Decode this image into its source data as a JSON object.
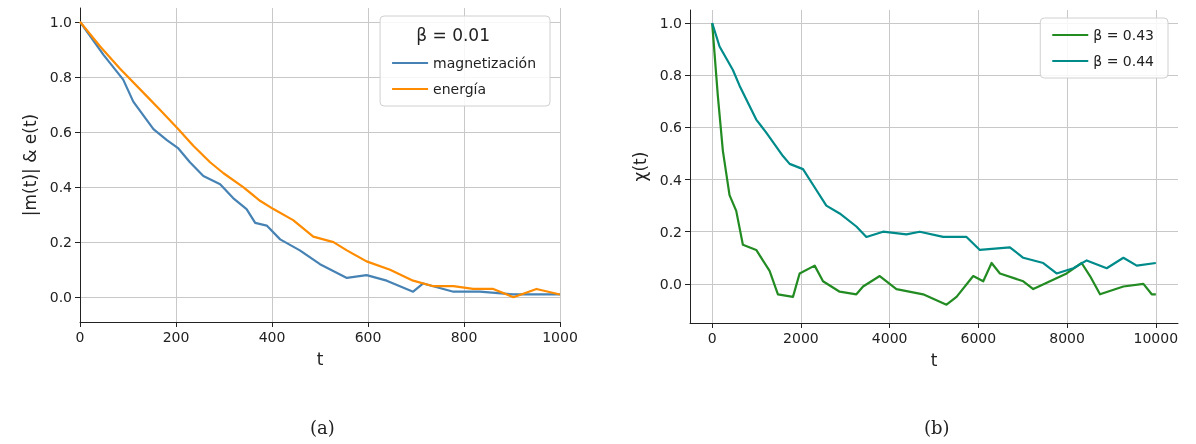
{
  "chart_data": [
    {
      "type": "line",
      "xlabel": "t",
      "ylabel": "|m(t)| & e(t)",
      "legend_title": "β = 0.01",
      "legend": "top right",
      "grid": true,
      "annotations": [
        "(a)"
      ],
      "xlim": [
        0,
        1000
      ],
      "xticks": [
        0,
        200,
        400,
        600,
        800,
        1000
      ],
      "ylim": [
        -0.09,
        1.05
      ],
      "yticks": [
        {
          "value": 0,
          "label": "0.0"
        },
        {
          "value": 0.2,
          "label": "0.2"
        },
        {
          "value": 0.4,
          "label": "0.4"
        },
        {
          "value": 0.6,
          "label": "0.6"
        },
        {
          "value": 0.8,
          "label": "0.8"
        },
        {
          "value": 1,
          "label": "1.0"
        }
      ],
      "series": [
        {
          "name": "magnetización",
          "color": "#4682b4",
          "x": [
            0,
            49,
            90,
            111,
            153,
            181,
            205,
            229,
            257,
            292,
            319,
            347,
            365,
            389,
            417,
            458,
            500,
            556,
            597,
            639,
            694,
            715,
            778,
            833,
            903,
            1000
          ],
          "values": [
            1.0,
            0.88,
            0.79,
            0.71,
            0.61,
            0.57,
            0.54,
            0.49,
            0.44,
            0.41,
            0.36,
            0.32,
            0.27,
            0.26,
            0.21,
            0.17,
            0.12,
            0.07,
            0.08,
            0.06,
            0.02,
            0.05,
            0.02,
            0.02,
            0.01,
            0.01
          ]
        },
        {
          "name": "energía",
          "color": "#ff8c00",
          "x": [
            0,
            42,
            83,
            139,
            167,
            205,
            236,
            271,
            299,
            340,
            375,
            403,
            444,
            486,
            528,
            556,
            597,
            646,
            694,
            736,
            778,
            819,
            861,
            903,
            951,
            1000
          ],
          "values": [
            1.0,
            0.91,
            0.83,
            0.73,
            0.68,
            0.61,
            0.55,
            0.49,
            0.45,
            0.4,
            0.35,
            0.32,
            0.28,
            0.22,
            0.2,
            0.17,
            0.13,
            0.1,
            0.06,
            0.04,
            0.04,
            0.03,
            0.03,
            0.0,
            0.03,
            0.01
          ]
        }
      ]
    },
    {
      "type": "line",
      "xlabel": "t",
      "ylabel": "χ(t)",
      "legend": "top right",
      "grid": true,
      "annotations": [
        "(b)"
      ],
      "xlim": [
        -500,
        10500
      ],
      "xticks": [
        0,
        2000,
        4000,
        6000,
        8000,
        10000
      ],
      "ylim": [
        -0.15,
        1.05
      ],
      "yticks": [
        {
          "value": 0,
          "label": "0.0"
        },
        {
          "value": 0.2,
          "label": "0.2"
        },
        {
          "value": 0.4,
          "label": "0.4"
        },
        {
          "value": 0.6,
          "label": "0.6"
        },
        {
          "value": 0.8,
          "label": "0.8"
        },
        {
          "value": 1,
          "label": "1.0"
        }
      ],
      "series": [
        {
          "name": "β = 0.43",
          "color": "#228b22",
          "x": [
            0,
            128,
            241,
            391,
            542,
            692,
            993,
            1294,
            1482,
            1821,
            1971,
            2310,
            2498,
            2874,
            3250,
            3401,
            3777,
            4153,
            4755,
            5282,
            5508,
            5884,
            6110,
            6298,
            6486,
            7012,
            7238,
            7614,
            7990,
            8328,
            8517,
            8742,
            9269,
            9720,
            9908,
            10000
          ],
          "values": [
            1.0,
            0.72,
            0.51,
            0.34,
            0.28,
            0.15,
            0.13,
            0.05,
            -0.04,
            -0.05,
            0.04,
            0.07,
            0.01,
            -0.03,
            -0.04,
            -0.01,
            0.03,
            -0.02,
            -0.04,
            -0.08,
            -0.05,
            0.03,
            0.01,
            0.08,
            0.04,
            0.01,
            -0.02,
            0.01,
            0.04,
            0.08,
            0.03,
            -0.04,
            -0.01,
            0.0,
            -0.04,
            -0.04
          ]
        },
        {
          "name": "β = 0.44",
          "color": "#008b8b",
          "x": [
            0,
            166,
            467,
            617,
            993,
            1219,
            1595,
            1746,
            2047,
            2272,
            2573,
            2874,
            3250,
            3476,
            3852,
            4378,
            4679,
            5206,
            5733,
            6034,
            6711,
            7012,
            7463,
            7764,
            8141,
            8442,
            8893,
            9269,
            9570,
            10000
          ],
          "values": [
            1.0,
            0.91,
            0.82,
            0.76,
            0.63,
            0.58,
            0.49,
            0.46,
            0.44,
            0.38,
            0.3,
            0.27,
            0.22,
            0.18,
            0.2,
            0.19,
            0.2,
            0.18,
            0.18,
            0.13,
            0.14,
            0.1,
            0.08,
            0.04,
            0.06,
            0.09,
            0.06,
            0.1,
            0.07,
            0.08
          ]
        }
      ]
    }
  ]
}
